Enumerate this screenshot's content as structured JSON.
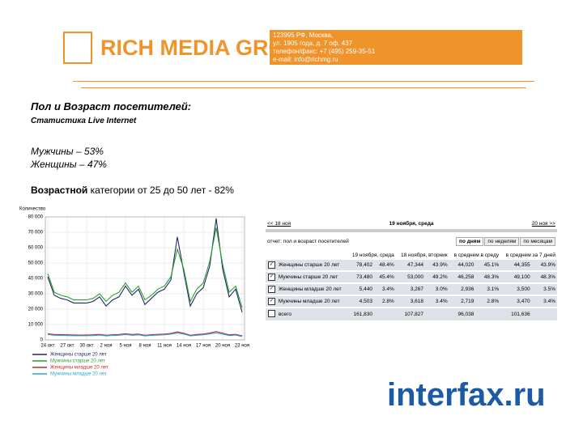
{
  "header": {
    "logo": "RICH MEDIA GROUP",
    "address": [
      "123995 РФ, Москва,",
      "ул. 1905 года, д. 7 оф. 437",
      "телефон/факс: +7 (495) 259-35-51",
      "e-mail: info@richmg.ru"
    ]
  },
  "body": {
    "title": "Пол и Возраст посетителей:",
    "subtitle": "Статистика Live Internet",
    "lines": [
      "Мужчины – 53%",
      "Женщины – 47%"
    ],
    "age_bold": "Возрастной",
    "age_rest": "категории от 25 до 50 лет - 82%"
  },
  "chart_data": {
    "type": "line",
    "y_label": "Количество",
    "categories": [
      "24 окт",
      null,
      null,
      "27 окт",
      null,
      null,
      "30 окт",
      null,
      null,
      "2 ноя",
      null,
      null,
      "5 ноя",
      null,
      null,
      "8 ноя",
      null,
      null,
      "11 ноя",
      null,
      null,
      "14 ноя",
      null,
      null,
      "17 ноя",
      null,
      null,
      "20 ноя",
      null,
      null,
      "23 ноя"
    ],
    "series": [
      {
        "name": "Женщины старше 20 лет",
        "color": "#1f2a6b",
        "values": [
          41000,
          29000,
          27000,
          26000,
          24000,
          24000,
          24000,
          25000,
          28000,
          22000,
          26000,
          28000,
          35000,
          29000,
          33000,
          23000,
          27000,
          31000,
          33000,
          39000,
          67000,
          44000,
          22000,
          30000,
          34000,
          48000,
          79000,
          46000,
          28000,
          33000,
          18000
        ]
      },
      {
        "name": "Мужчины старше 20 лет",
        "color": "#2e9e2e",
        "values": [
          43000,
          31000,
          29000,
          28000,
          26000,
          26000,
          26000,
          27000,
          30000,
          25000,
          29000,
          31000,
          37000,
          31000,
          35000,
          26000,
          29000,
          33000,
          35000,
          41000,
          59000,
          46000,
          25000,
          33000,
          37000,
          51000,
          73000,
          49000,
          31000,
          35000,
          21000
        ]
      },
      {
        "name": "Женщины младше 20 лет",
        "color": "#c0282a",
        "values": [
          4000,
          3500,
          3400,
          3300,
          3200,
          3100,
          3200,
          3300,
          3600,
          3000,
          3300,
          3500,
          4000,
          3500,
          3800,
          3000,
          3300,
          3600,
          3800,
          4200,
          5200,
          4300,
          3000,
          3500,
          3800,
          4500,
          5400,
          4400,
          3300,
          3600,
          2600
        ]
      },
      {
        "name": "Мужчины младше 20 лет",
        "color": "#2aa8c8",
        "values": [
          3500,
          3000,
          2900,
          2800,
          2700,
          2700,
          2700,
          2800,
          3100,
          2600,
          2900,
          3000,
          3500,
          3000,
          3300,
          2600,
          2900,
          3100,
          3300,
          3700,
          4500,
          3800,
          2600,
          3000,
          3300,
          3900,
          4500,
          3800,
          2800,
          3100,
          2200
        ]
      }
    ],
    "ylim": [
      0,
      80000
    ],
    "yticks": [
      0,
      {
        "value": 10000,
        "label": "10 000"
      },
      {
        "value": 20000,
        "label": "20 000"
      },
      {
        "value": 30000,
        "label": "30 000"
      },
      {
        "value": 40000,
        "label": "40 000"
      },
      {
        "value": 50000,
        "label": "50 000"
      },
      {
        "value": 60000,
        "label": "60 000"
      },
      {
        "value": 70000,
        "label": "70 000"
      },
      {
        "value": 80000,
        "label": "80 000"
      }
    ],
    "grid": true
  },
  "table": {
    "nav": {
      "prev": "<< 18 ноя",
      "date": "19 ноября, среда",
      "next": "20 ноя >>"
    },
    "report": "отчет: пол и возраст посетителей",
    "modes": [
      "по дням",
      "по неделям",
      "по месяцам"
    ],
    "columns": [
      "19 ноября, среда",
      "18 ноября, вторник",
      "в среднем в среду",
      "в среднем за 7 дней"
    ],
    "rows": [
      {
        "name": "Женщины старше 20 лет",
        "values": [
          "78,402",
          "48.4%",
          "47,344",
          "43.9%",
          "44,020",
          "45.1%",
          "44,355",
          "43.9%"
        ]
      },
      {
        "name": "Мужчины старше 20 лет",
        "values": [
          "73,480",
          "45.4%",
          "53,000",
          "49.2%",
          "46,258",
          "48.3%",
          "49,100",
          "48.3%"
        ]
      },
      {
        "name": "Женщины младше 20 лет",
        "values": [
          "5,440",
          "3.4%",
          "3,267",
          "3.0%",
          "2,936",
          "3.1%",
          "3,500",
          "3.5%"
        ]
      },
      {
        "name": "Мужчины младше 20 лет",
        "values": [
          "4,503",
          "2.8%",
          "3,618",
          "3.4%",
          "2,719",
          "2.8%",
          "3,470",
          "3.4%"
        ]
      }
    ],
    "total": {
      "name": "всего",
      "values": [
        "161,830",
        "107,827",
        "96,038",
        "101,636"
      ]
    }
  },
  "footer": {
    "logo": "interfax.ru"
  }
}
